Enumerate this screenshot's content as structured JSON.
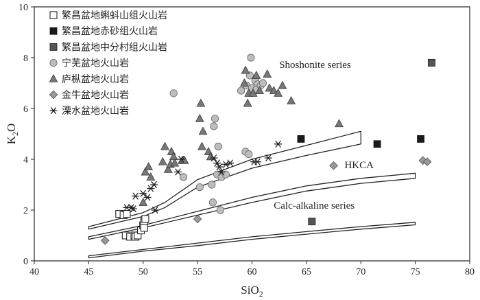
{
  "chart_data": {
    "type": "scatter",
    "xlabel": "SiO",
    "xlabel_sub": "2",
    "ylabel": "K",
    "ylabel_sub": "2",
    "ylabel_tail": "O",
    "xlim": [
      40,
      80
    ],
    "ylim": [
      0,
      10
    ],
    "xticks": [
      "40",
      "45",
      "50",
      "55",
      "60",
      "65",
      "70",
      "75",
      "80"
    ],
    "yticks": [
      "0",
      "2",
      "4",
      "6",
      "8",
      "10"
    ],
    "grid": false,
    "legend_position": "top-left",
    "series": [
      {
        "name": "繁昌盆地蝌蚪山组火山岩",
        "marker": "square-open",
        "color": "#222222",
        "points": [
          [
            47.8,
            1.85
          ],
          [
            48.2,
            1.8
          ],
          [
            48.5,
            1.85
          ],
          [
            48.4,
            1.0
          ],
          [
            48.8,
            0.95
          ],
          [
            49.2,
            1.0
          ],
          [
            49.3,
            0.95
          ],
          [
            49.5,
            1.0
          ],
          [
            49.8,
            1.2
          ],
          [
            50.0,
            1.4
          ],
          [
            50.1,
            1.55
          ],
          [
            50.2,
            1.65
          ],
          [
            50.1,
            1.3
          ]
        ]
      },
      {
        "name": "繁昌盆地赤砂组火山岩",
        "marker": "square-filled",
        "color": "#1a1a1a",
        "points": [
          [
            64.5,
            4.8
          ],
          [
            71.5,
            4.6
          ],
          [
            75.5,
            4.8
          ]
        ]
      },
      {
        "name": "繁昌盆地中分村组火山岩",
        "marker": "square-gray",
        "color": "#555555",
        "points": [
          [
            65.5,
            1.55
          ],
          [
            76.5,
            7.8
          ]
        ]
      },
      {
        "name": "宁芜盆地火山岩",
        "marker": "circle",
        "color": "#bdbdbd",
        "points": [
          [
            52.8,
            6.6
          ],
          [
            53.7,
            3.3
          ],
          [
            55.2,
            2.9
          ],
          [
            56.3,
            3.0
          ],
          [
            56.4,
            2.3
          ],
          [
            56.8,
            3.4
          ],
          [
            57.1,
            2.0
          ],
          [
            56.5,
            5.3
          ],
          [
            56.6,
            5.6
          ],
          [
            56.9,
            4.5
          ],
          [
            57.2,
            3.3
          ],
          [
            57.6,
            3.4
          ],
          [
            59.0,
            6.7
          ],
          [
            59.5,
            6.9
          ],
          [
            59.8,
            7.3
          ],
          [
            59.9,
            8.0
          ],
          [
            60.0,
            6.8
          ],
          [
            60.3,
            7.1
          ],
          [
            60.5,
            6.95
          ],
          [
            60.4,
            6.75
          ],
          [
            60.8,
            6.9
          ],
          [
            61.0,
            7.0
          ],
          [
            59.4,
            4.3
          ],
          [
            59.7,
            4.2
          ]
        ]
      },
      {
        "name": "庐枞盆地火山岩",
        "marker": "triangle",
        "color": "#777777",
        "points": [
          [
            50.0,
            2.3
          ],
          [
            50.2,
            3.5
          ],
          [
            50.5,
            3.7
          ],
          [
            50.7,
            3.3
          ],
          [
            51.8,
            3.9
          ],
          [
            52.0,
            4.5
          ],
          [
            52.3,
            3.6
          ],
          [
            52.5,
            3.8
          ],
          [
            52.6,
            4.3
          ],
          [
            52.8,
            4.1
          ],
          [
            52.9,
            3.85
          ],
          [
            53.6,
            3.95
          ],
          [
            53.8,
            3.95
          ],
          [
            55.3,
            6.2
          ],
          [
            55.2,
            5.6
          ],
          [
            55.5,
            5.1
          ],
          [
            55.4,
            4.5
          ],
          [
            56.0,
            4.3
          ],
          [
            56.2,
            4.1
          ],
          [
            59.3,
            7.0
          ],
          [
            59.6,
            6.2
          ],
          [
            59.4,
            7.5
          ],
          [
            59.7,
            6.6
          ],
          [
            60.1,
            6.6
          ],
          [
            60.4,
            7.3
          ],
          [
            60.7,
            6.7
          ],
          [
            61.4,
            7.35
          ],
          [
            61.6,
            6.8
          ],
          [
            62.0,
            6.7
          ],
          [
            62.4,
            6.6
          ],
          [
            62.8,
            6.9
          ],
          [
            63.6,
            6.3
          ],
          [
            68.0,
            5.4
          ]
        ]
      },
      {
        "name": "金牛盆地火山岩",
        "marker": "diamond",
        "color": "#999999",
        "points": [
          [
            46.5,
            0.8
          ],
          [
            55.0,
            1.65
          ],
          [
            67.5,
            3.75
          ],
          [
            75.7,
            3.95
          ],
          [
            76.1,
            3.9
          ]
        ]
      },
      {
        "name": "溧水盆地火山岩",
        "marker": "asterisk",
        "color": "#222222",
        "points": [
          [
            48.5,
            2.1
          ],
          [
            48.9,
            2.1
          ],
          [
            49.1,
            2.05
          ],
          [
            49.3,
            2.55
          ],
          [
            50.0,
            2.65
          ],
          [
            50.4,
            2.5
          ],
          [
            50.7,
            2.85
          ],
          [
            51.0,
            3.0
          ],
          [
            51.1,
            2.0
          ],
          [
            53.2,
            3.5
          ],
          [
            53.5,
            4.0
          ],
          [
            56.5,
            4.05
          ],
          [
            56.8,
            3.85
          ],
          [
            57.0,
            3.7
          ],
          [
            57.2,
            3.5
          ],
          [
            57.6,
            3.8
          ],
          [
            58.0,
            3.85
          ],
          [
            60.2,
            3.9
          ],
          [
            60.5,
            3.9
          ],
          [
            61.5,
            4.05
          ],
          [
            62.4,
            4.6
          ]
        ]
      }
    ],
    "boundaries": [
      {
        "name": "shoshonite-upper",
        "upper": [
          [
            45,
            1.35
          ],
          [
            50,
            1.9
          ],
          [
            52,
            2.3
          ],
          [
            55,
            3.2
          ],
          [
            60,
            4.0
          ],
          [
            65,
            4.55
          ],
          [
            70,
            5.1
          ]
        ],
        "lower": [
          [
            70,
            4.6
          ],
          [
            65,
            4.15
          ],
          [
            60,
            3.65
          ],
          [
            55,
            2.9
          ],
          [
            52,
            2.1
          ],
          [
            50,
            1.75
          ],
          [
            45,
            1.25
          ]
        ]
      },
      {
        "name": "hkca-boundary",
        "upper": [
          [
            45,
            0.95
          ],
          [
            50,
            1.4
          ],
          [
            55,
            1.95
          ],
          [
            60,
            2.5
          ],
          [
            65,
            2.95
          ],
          [
            70,
            3.25
          ],
          [
            75,
            3.45
          ]
        ],
        "lower": [
          [
            75,
            3.25
          ],
          [
            70,
            3.05
          ],
          [
            65,
            2.75
          ],
          [
            60,
            2.3
          ],
          [
            55,
            1.8
          ],
          [
            50,
            1.3
          ],
          [
            45,
            0.85
          ]
        ]
      },
      {
        "name": "calc-alkaline-boundary",
        "upper": [
          [
            45,
            0.2
          ],
          [
            50,
            0.45
          ],
          [
            55,
            0.7
          ],
          [
            60,
            0.95
          ],
          [
            65,
            1.15
          ],
          [
            70,
            1.35
          ],
          [
            75,
            1.52
          ]
        ],
        "lower": [
          [
            75,
            1.42
          ],
          [
            70,
            1.25
          ],
          [
            65,
            1.05
          ],
          [
            60,
            0.85
          ],
          [
            55,
            0.6
          ],
          [
            50,
            0.38
          ],
          [
            45,
            0.12
          ]
        ]
      }
    ],
    "annotations": [
      {
        "name": "shoshonite",
        "text": "Shoshonite series",
        "at": [
          62.5,
          7.6
        ]
      },
      {
        "name": "hkca",
        "text": "HKCA",
        "at": [
          68.5,
          3.65
        ]
      },
      {
        "name": "calc-alkaline",
        "text": "Calc-alkaline series",
        "at": [
          62.0,
          2.05
        ]
      }
    ]
  }
}
